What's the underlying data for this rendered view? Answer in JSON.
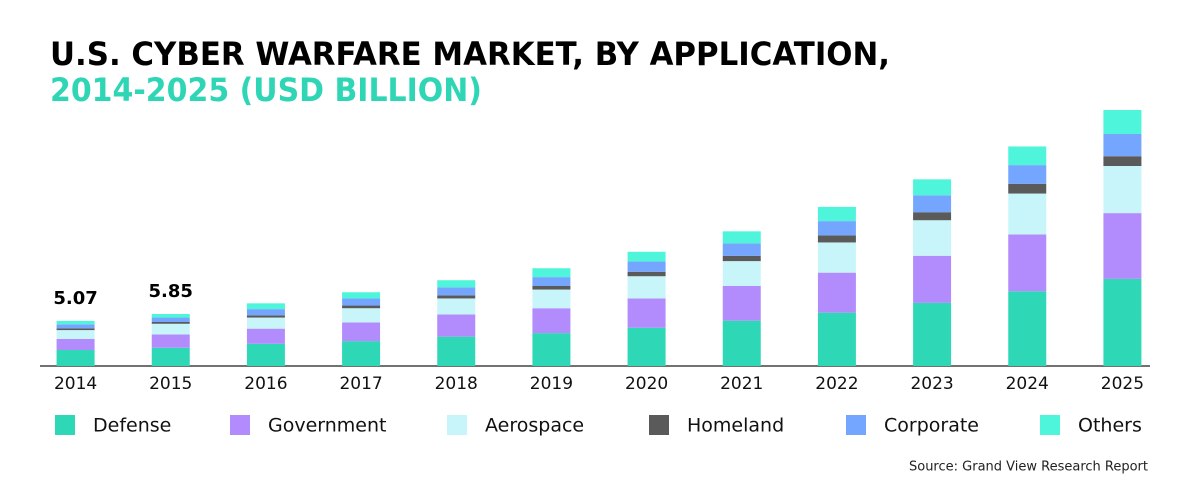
{
  "chart_data": {
    "type": "stacked-bar",
    "title": "U.S. CYBER WARFARE MARKET, BY APPLICATION,",
    "subtitle": "2014-2025 (USD BILLION)",
    "source": "Source: Grand View Research Report",
    "categories": [
      "2014",
      "2015",
      "2016",
      "2017",
      "2018",
      "2019",
      "2020",
      "2021",
      "2022",
      "2023",
      "2024",
      "2025"
    ],
    "totals": [
      5.07,
      5.85
    ],
    "series": [
      {
        "name": "Defense",
        "color": "#2ed8b6",
        "values": [
          1.8,
          2.05,
          2.5,
          2.8,
          3.3,
          3.7,
          4.3,
          5.1,
          6.0,
          7.1,
          8.4,
          9.8
        ]
      },
      {
        "name": "Government",
        "color": "#b28cfc",
        "values": [
          1.24,
          1.5,
          1.7,
          2.1,
          2.5,
          2.8,
          3.3,
          3.9,
          4.5,
          5.3,
          6.4,
          7.4
        ]
      },
      {
        "name": "Aerospace",
        "color": "#c7f5fa",
        "values": [
          1.0,
          1.2,
          1.25,
          1.6,
          1.8,
          2.1,
          2.5,
          2.8,
          3.4,
          4.0,
          4.6,
          5.3
        ]
      },
      {
        "name": "Homeland",
        "color": "#5a5a5a",
        "values": [
          0.2,
          0.2,
          0.25,
          0.3,
          0.35,
          0.4,
          0.5,
          0.6,
          0.8,
          0.9,
          1.1,
          1.1
        ]
      },
      {
        "name": "Corporate",
        "color": "#74a6ff",
        "values": [
          0.45,
          0.5,
          0.7,
          0.8,
          0.9,
          1.0,
          1.15,
          1.4,
          1.6,
          1.9,
          2.1,
          2.5
        ]
      },
      {
        "name": "Others",
        "color": "#4ef5da",
        "values": [
          0.38,
          0.4,
          0.65,
          0.7,
          0.8,
          1.0,
          1.1,
          1.35,
          1.6,
          1.8,
          2.1,
          2.7
        ]
      }
    ]
  }
}
